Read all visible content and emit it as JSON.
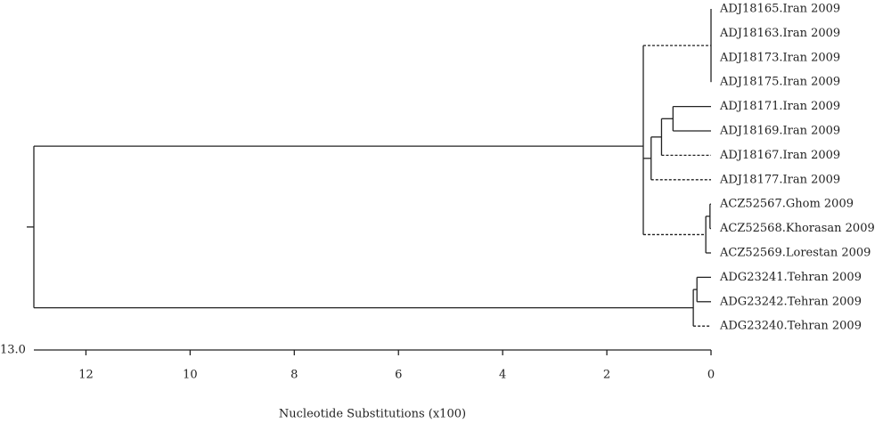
{
  "chart_data": {
    "type": "dendrogram",
    "x_label": "Nucleotide Substitutions (x100)",
    "xlim": [
      13,
      0
    ],
    "xticks": [
      {
        "value": 13,
        "label": "13.0"
      },
      12,
      10,
      8,
      6,
      4,
      2,
      0
    ],
    "tree": {
      "height": 13,
      "children": [
        {
          "height": 1.3,
          "children": [
            {
              "height": 0,
              "dashed": true,
              "children": [
                {
                  "height": 0,
                  "label": "ADJ18165.Iran 2009"
                },
                {
                  "height": 0,
                  "label": "ADJ18163.Iran 2009"
                },
                {
                  "height": 0,
                  "label": "ADJ18173.Iran 2009"
                },
                {
                  "height": 0,
                  "label": "ADJ18175.Iran 2009"
                }
              ]
            },
            {
              "height": 1.15,
              "children": [
                {
                  "height": 0.95,
                  "children": [
                    {
                      "height": 0.73,
                      "children": [
                        {
                          "height": 0,
                          "label": "ADJ18171.Iran 2009"
                        },
                        {
                          "height": 0,
                          "label": "ADJ18169.Iran 2009"
                        }
                      ]
                    },
                    {
                      "height": 0,
                      "dashed": true,
                      "label": "ADJ18167.Iran 2009"
                    }
                  ]
                },
                {
                  "height": 0,
                  "dashed": true,
                  "label": "ADJ18177.Iran 2009"
                }
              ]
            },
            {
              "height": 0.1,
              "dashed": true,
              "children": [
                {
                  "height": 0.02,
                  "children": [
                    {
                      "height": 0,
                      "label": "ACZ52567.Ghom 2009"
                    },
                    {
                      "height": 0,
                      "label": "ACZ52568.Khorasan 2009"
                    }
                  ]
                },
                {
                  "height": 0,
                  "label": "ACZ52569.Lorestan 2009"
                }
              ]
            }
          ]
        },
        {
          "height": 0.34,
          "children": [
            {
              "height": 0.27,
              "children": [
                {
                  "height": 0,
                  "label": "ADG23241.Tehran 2009"
                },
                {
                  "height": 0,
                  "label": "ADG23242.Tehran 2009"
                }
              ]
            },
            {
              "height": 0,
              "dashed": true,
              "label": "ADG23240.Tehran 2009"
            }
          ]
        }
      ]
    }
  }
}
